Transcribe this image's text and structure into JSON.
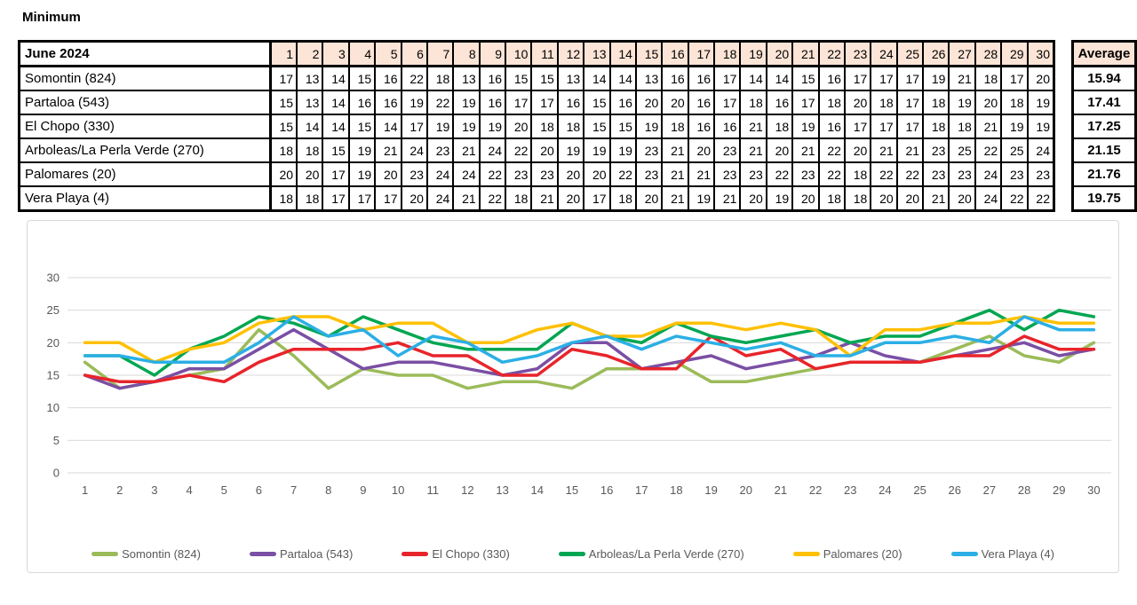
{
  "title": "Minimum",
  "table": {
    "month_label": "June 2024",
    "average_label": "Average",
    "header_fill": "#FCE4D6",
    "days": [
      1,
      2,
      3,
      4,
      5,
      6,
      7,
      8,
      9,
      10,
      11,
      12,
      13,
      14,
      15,
      16,
      17,
      18,
      19,
      20,
      21,
      22,
      23,
      24,
      25,
      26,
      27,
      28,
      29,
      30
    ],
    "rows": [
      {
        "label": "Somontin (824)",
        "average": "15.94",
        "values": [
          17,
          13,
          14,
          15,
          16,
          22,
          18,
          13,
          16,
          15,
          15,
          13,
          14,
          14,
          13,
          16,
          16,
          17,
          14,
          14,
          15,
          16,
          17,
          17,
          17,
          19,
          21,
          18,
          17,
          20
        ]
      },
      {
        "label": "Partaloa (543)",
        "average": "17.41",
        "values": [
          15,
          13,
          14,
          16,
          16,
          19,
          22,
          19,
          16,
          17,
          17,
          16,
          15,
          16,
          20,
          20,
          16,
          17,
          18,
          16,
          17,
          18,
          20,
          18,
          17,
          18,
          19,
          20,
          18,
          19
        ]
      },
      {
        "label": "El Chopo (330)",
        "average": "17.25",
        "values": [
          15,
          14,
          14,
          15,
          14,
          17,
          19,
          19,
          19,
          20,
          18,
          18,
          15,
          15,
          19,
          18,
          16,
          16,
          21,
          18,
          19,
          16,
          17,
          17,
          17,
          18,
          18,
          21,
          19,
          19
        ]
      },
      {
        "label": "Arboleas/La Perla Verde (270)",
        "average": "21.15",
        "values": [
          18,
          18,
          15,
          19,
          21,
          24,
          23,
          21,
          24,
          22,
          20,
          19,
          19,
          19,
          23,
          21,
          20,
          23,
          21,
          20,
          21,
          22,
          20,
          21,
          21,
          23,
          25,
          22,
          25,
          24
        ]
      },
      {
        "label": "Palomares (20)",
        "average": "21.76",
        "values": [
          20,
          20,
          17,
          19,
          20,
          23,
          24,
          24,
          22,
          23,
          23,
          20,
          20,
          22,
          23,
          21,
          21,
          23,
          23,
          22,
          23,
          22,
          18,
          22,
          22,
          23,
          23,
          24,
          23,
          23
        ]
      },
      {
        "label": "Vera Playa (4)",
        "average": "19.75",
        "values": [
          18,
          18,
          17,
          17,
          17,
          20,
          24,
          21,
          22,
          18,
          21,
          20,
          17,
          18,
          20,
          21,
          19,
          21,
          20,
          19,
          20,
          18,
          18,
          20,
          20,
          21,
          20,
          24,
          22,
          22
        ]
      }
    ]
  },
  "chart_data": {
    "type": "line",
    "title": "",
    "xlabel": "",
    "ylabel": "",
    "x": [
      1,
      2,
      3,
      4,
      5,
      6,
      7,
      8,
      9,
      10,
      11,
      12,
      13,
      14,
      15,
      16,
      17,
      18,
      19,
      20,
      21,
      22,
      23,
      24,
      25,
      26,
      27,
      28,
      29,
      30
    ],
    "ylim": [
      0,
      30
    ],
    "yticks": [
      0,
      5,
      10,
      15,
      20,
      25,
      30
    ],
    "grid": true,
    "legend_position": "bottom",
    "axis_text_color": "#595959",
    "gridline_color": "#D9D9D9",
    "series": [
      {
        "name": "Somontin (824)",
        "color": "#9BBB59",
        "values": [
          17,
          13,
          14,
          15,
          16,
          22,
          18,
          13,
          16,
          15,
          15,
          13,
          14,
          14,
          13,
          16,
          16,
          17,
          14,
          14,
          15,
          16,
          17,
          17,
          17,
          19,
          21,
          18,
          17,
          20
        ]
      },
      {
        "name": "Partaloa (543)",
        "color": "#7A4FA4",
        "values": [
          15,
          13,
          14,
          16,
          16,
          19,
          22,
          19,
          16,
          17,
          17,
          16,
          15,
          16,
          20,
          20,
          16,
          17,
          18,
          16,
          17,
          18,
          20,
          18,
          17,
          18,
          19,
          20,
          18,
          19
        ]
      },
      {
        "name": "El Chopo (330)",
        "color": "#E8242B",
        "values": [
          15,
          14,
          14,
          15,
          14,
          17,
          19,
          19,
          19,
          20,
          18,
          18,
          15,
          15,
          19,
          18,
          16,
          16,
          21,
          18,
          19,
          16,
          17,
          17,
          17,
          18,
          18,
          21,
          19,
          19
        ]
      },
      {
        "name": "Arboleas/La Perla Verde (270)",
        "color": "#00A651",
        "values": [
          18,
          18,
          15,
          19,
          21,
          24,
          23,
          21,
          24,
          22,
          20,
          19,
          19,
          19,
          23,
          21,
          20,
          23,
          21,
          20,
          21,
          22,
          20,
          21,
          21,
          23,
          25,
          22,
          25,
          24
        ]
      },
      {
        "name": "Palomares (20)",
        "color": "#FFC000",
        "values": [
          20,
          20,
          17,
          19,
          20,
          23,
          24,
          24,
          22,
          23,
          23,
          20,
          20,
          22,
          23,
          21,
          21,
          23,
          23,
          22,
          23,
          22,
          18,
          22,
          22,
          23,
          23,
          24,
          23,
          23
        ]
      },
      {
        "name": "Vera Playa (4)",
        "color": "#2BAFE5",
        "values": [
          18,
          18,
          17,
          17,
          17,
          20,
          24,
          21,
          22,
          18,
          21,
          20,
          17,
          18,
          20,
          21,
          19,
          21,
          20,
          19,
          20,
          18,
          18,
          20,
          20,
          21,
          20,
          24,
          22,
          22
        ]
      }
    ]
  }
}
